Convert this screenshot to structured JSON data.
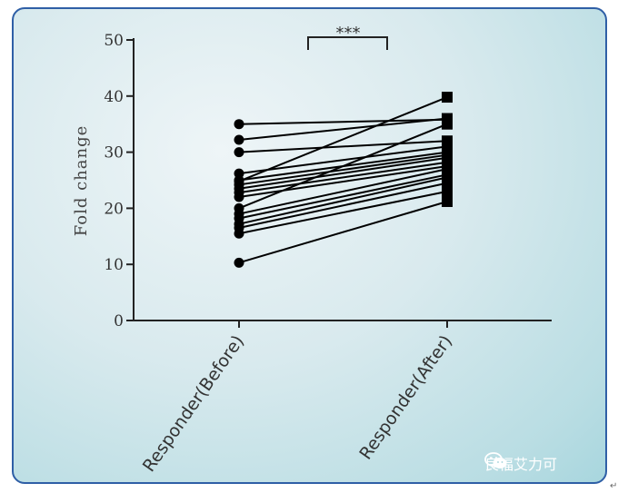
{
  "chart_data": {
    "type": "line",
    "style": "paired-before-after",
    "categories": [
      "Responder(Before)",
      "Responder(After)"
    ],
    "ylabel": "Fold change",
    "xlabel": "",
    "ylim": [
      0,
      50
    ],
    "yticks": [
      0,
      10,
      20,
      30,
      40,
      50
    ],
    "grid": false,
    "significance": "***",
    "pairs": [
      [
        35.0,
        35.8
      ],
      [
        32.2,
        36.0
      ],
      [
        30.0,
        32.0
      ],
      [
        26.2,
        31.0
      ],
      [
        25.0,
        30.0
      ],
      [
        24.2,
        29.5
      ],
      [
        23.5,
        29.0
      ],
      [
        22.8,
        28.2
      ],
      [
        22.0,
        27.5
      ],
      [
        20.0,
        35.0
      ],
      [
        19.0,
        27.0
      ],
      [
        18.2,
        26.0
      ],
      [
        17.2,
        25.5
      ],
      [
        16.5,
        24.5
      ],
      [
        15.5,
        23.0
      ],
      [
        10.3,
        21.2
      ],
      [
        24.8,
        39.8
      ]
    ],
    "marker_before": "circle",
    "marker_after": "square",
    "line_color": "#000000"
  },
  "watermark": {
    "text": "良福艾力可",
    "icon": "wechat-icon"
  },
  "corner_mark": "↵"
}
